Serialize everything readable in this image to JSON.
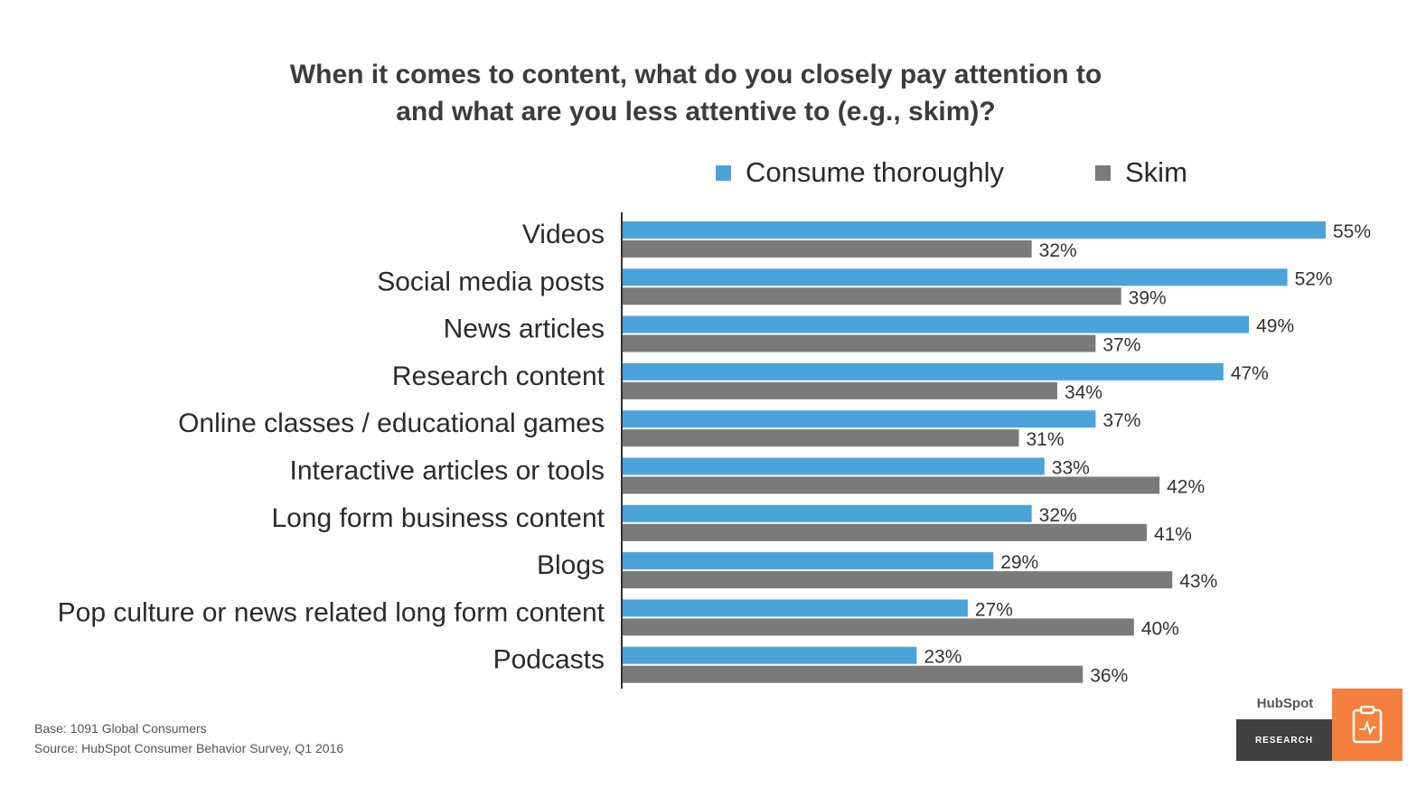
{
  "chart_data": {
    "type": "bar",
    "orientation": "horizontal",
    "title": "When it comes to content, what do you closely pay attention to and what are you less attentive to (e.g., skim)?",
    "title_lines": [
      "When it comes to content, what do you closely pay attention to",
      "and what are you less attentive to (e.g., skim)?"
    ],
    "categories": [
      "Videos",
      "Social media posts",
      "News articles",
      "Research content",
      "Online classes / educational games",
      "Interactive articles or tools",
      "Long form business content",
      "Blogs",
      "Pop culture or news related long form content",
      "Podcasts"
    ],
    "series": [
      {
        "name": "Consume thoroughly",
        "color": "#4ba3dc",
        "values": [
          55,
          52,
          49,
          47,
          37,
          33,
          32,
          29,
          27,
          23
        ]
      },
      {
        "name": "Skim",
        "color": "#7a7a7a",
        "values": [
          32,
          39,
          37,
          34,
          31,
          42,
          41,
          43,
          40,
          36
        ]
      }
    ],
    "value_suffix": "%",
    "xlim": [
      0,
      60
    ],
    "legend_position": "top",
    "grid": false
  },
  "footnotes": {
    "base": "Base: 1091 Global Consumers",
    "source": "Source: HubSpot Consumer Behavior Survey, Q1 2016"
  },
  "brand": {
    "name": "HubSpot",
    "label": "RESEARCH",
    "accent_color": "#f5803e",
    "icon": "clipboard-chart-icon"
  }
}
